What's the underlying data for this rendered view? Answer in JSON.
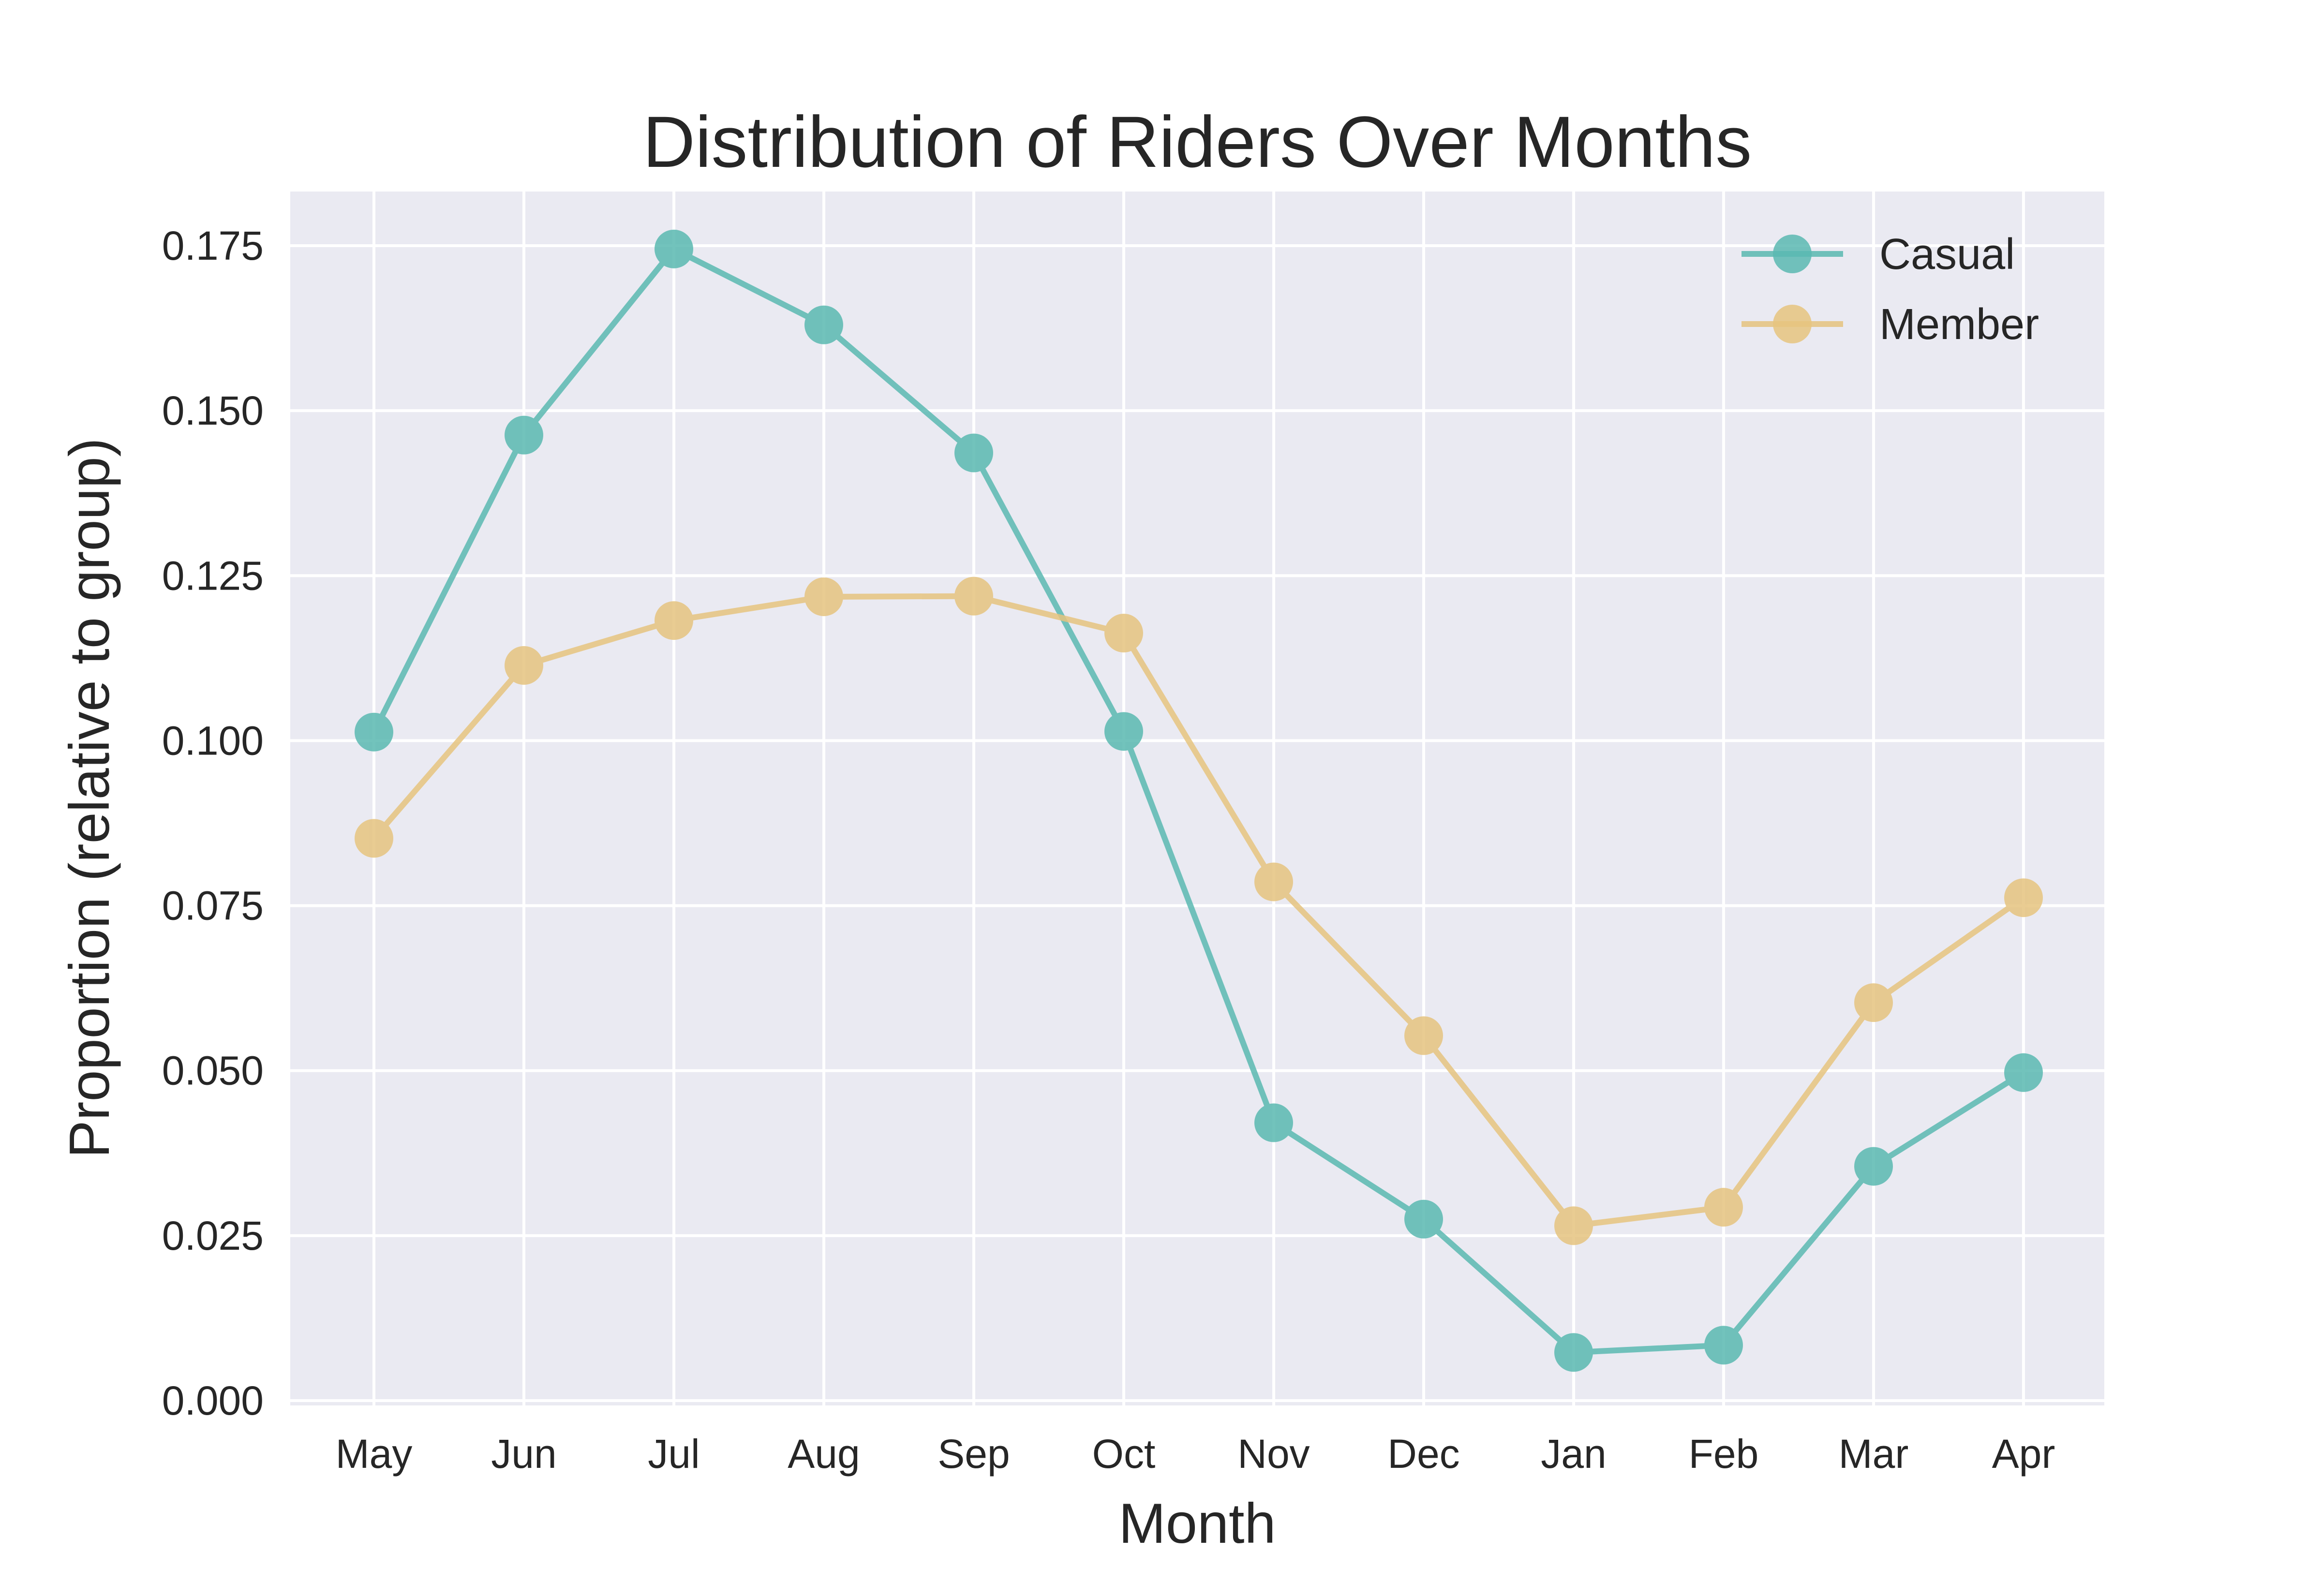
{
  "chart_data": {
    "type": "line",
    "title": "Distribution of Riders Over Months",
    "xlabel": "Month",
    "ylabel": "Proportion (relative to group)",
    "categories": [
      "May",
      "Jun",
      "Jul",
      "Aug",
      "Sep",
      "Oct",
      "Nov",
      "Dec",
      "Jan",
      "Feb",
      "Mar",
      "Apr"
    ],
    "ylim": [
      0,
      0.1835
    ],
    "yticks": [
      0.0,
      0.025,
      0.05,
      0.075,
      0.1,
      0.125,
      0.15,
      0.175
    ],
    "ytick_labels": [
      "0.000",
      "0.025",
      "0.050",
      "0.075",
      "0.100",
      "0.125",
      "0.150",
      "0.175"
    ],
    "grid": true,
    "legend_position": "top-right",
    "series": [
      {
        "name": "Casual",
        "color": "#5ab9b1",
        "values": [
          0.1013,
          0.1463,
          0.1745,
          0.163,
          0.1436,
          0.1014,
          0.0421,
          0.0275,
          0.0073,
          0.0084,
          0.0355,
          0.0497
        ]
      },
      {
        "name": "Member",
        "color": "#e6c47f",
        "values": [
          0.0852,
          0.1114,
          0.1182,
          0.1218,
          0.1219,
          0.1163,
          0.0786,
          0.0553,
          0.0265,
          0.0293,
          0.0603,
          0.0762
        ]
      }
    ]
  }
}
